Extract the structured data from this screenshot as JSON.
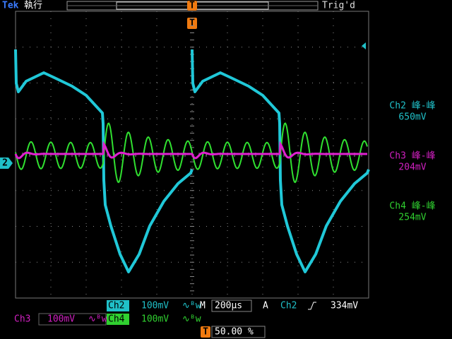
{
  "header": {
    "brand": "Tek",
    "status": "執行",
    "trigger_state": "Trig'd"
  },
  "markers": {
    "trigger_top": "T",
    "channel": "2",
    "trigger_bottom": "T"
  },
  "measurements": [
    {
      "label": "Ch2 峰-峰",
      "value": "650mV"
    },
    {
      "label": "Ch3 峰-峰",
      "value": "204mV"
    },
    {
      "label": "Ch4 峰-峰",
      "value": "254mV"
    }
  ],
  "footer": {
    "ch2": {
      "name": "Ch2",
      "scale": "100mV"
    },
    "timebase": {
      "prefix": "M",
      "value": "200µs"
    },
    "trigger": {
      "mode": "A",
      "source": "Ch2",
      "level": "334mV"
    },
    "ch3": {
      "name": "Ch3",
      "scale": "100mV"
    },
    "ch4": {
      "name": "Ch4",
      "scale": "100mV"
    },
    "position": "50.00 %"
  }
}
